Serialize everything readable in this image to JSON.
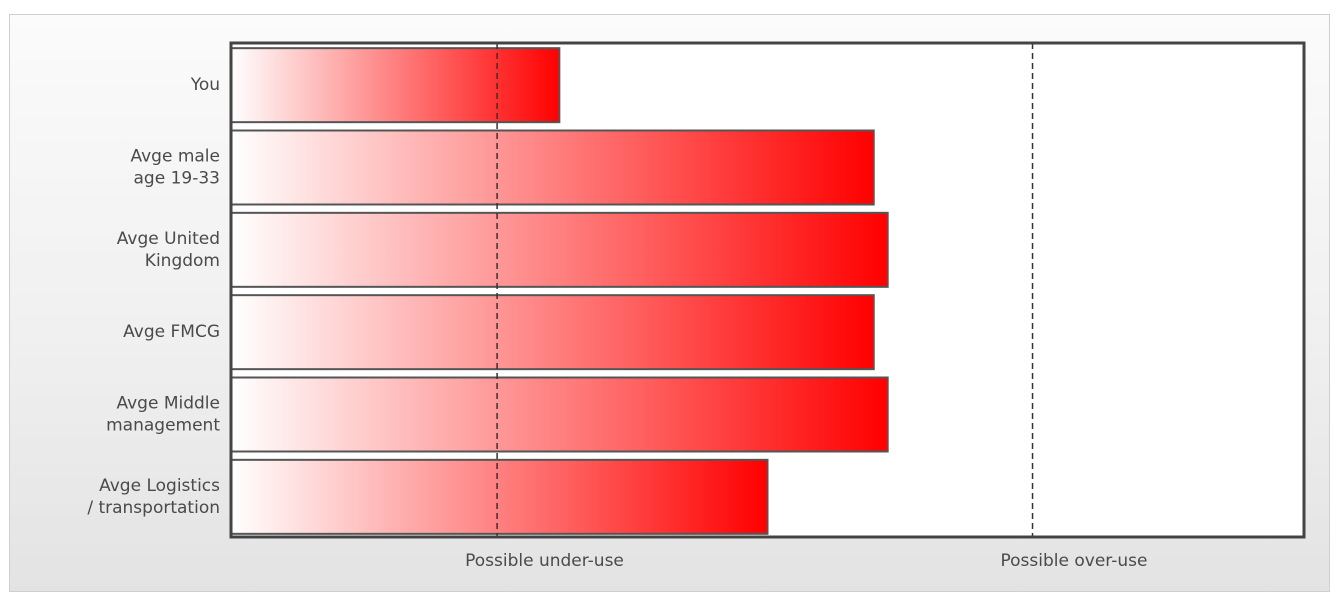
{
  "chart_data": {
    "type": "bar",
    "orientation": "horizontal",
    "categories": [
      [
        "You"
      ],
      [
        "Avge male",
        "age 19-33"
      ],
      [
        "Avge United",
        "Kingdom"
      ],
      [
        "Avge FMCG"
      ],
      [
        "Avge Middle",
        "management"
      ],
      [
        "Avge Logistics",
        "/ transportation"
      ]
    ],
    "values": [
      0.306,
      0.599,
      0.612,
      0.599,
      0.612,
      0.5
    ],
    "xlim": [
      0,
      1
    ],
    "reference_lines": [
      {
        "value": 0.248,
        "label": "Possible under-use"
      },
      {
        "value": 0.747,
        "label": "Possible over-use"
      }
    ],
    "bar_color": "#ff0000",
    "grid": false,
    "legend": "none",
    "title": "",
    "xlabel": "",
    "ylabel": ""
  }
}
